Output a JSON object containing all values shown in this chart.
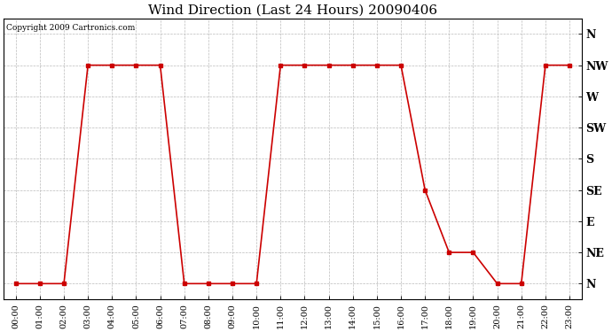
{
  "title": "Wind Direction (Last 24 Hours) 20090406",
  "copyright": "Copyright 2009 Cartronics.com",
  "line_color": "#cc0000",
  "marker": "s",
  "marker_size": 3,
  "background_color": "#ffffff",
  "grid_color": "#bbbbbb",
  "directions": [
    "N",
    "NE",
    "E",
    "SE",
    "S",
    "SW",
    "W",
    "NW",
    "N"
  ],
  "dir_values": [
    0,
    1,
    2,
    3,
    4,
    5,
    6,
    7,
    8
  ],
  "hours": [
    0,
    1,
    2,
    3,
    4,
    5,
    6,
    7,
    8,
    9,
    10,
    11,
    12,
    13,
    14,
    15,
    16,
    17,
    18,
    19,
    20,
    21,
    22,
    23
  ],
  "wind_dir": [
    0,
    0,
    0,
    7,
    7,
    7,
    7,
    0,
    0,
    0,
    0,
    7,
    7,
    7,
    7,
    7,
    7,
    3,
    1,
    1,
    0,
    0,
    7,
    7
  ],
  "figsize": [
    6.9,
    3.75
  ],
  "dpi": 100
}
